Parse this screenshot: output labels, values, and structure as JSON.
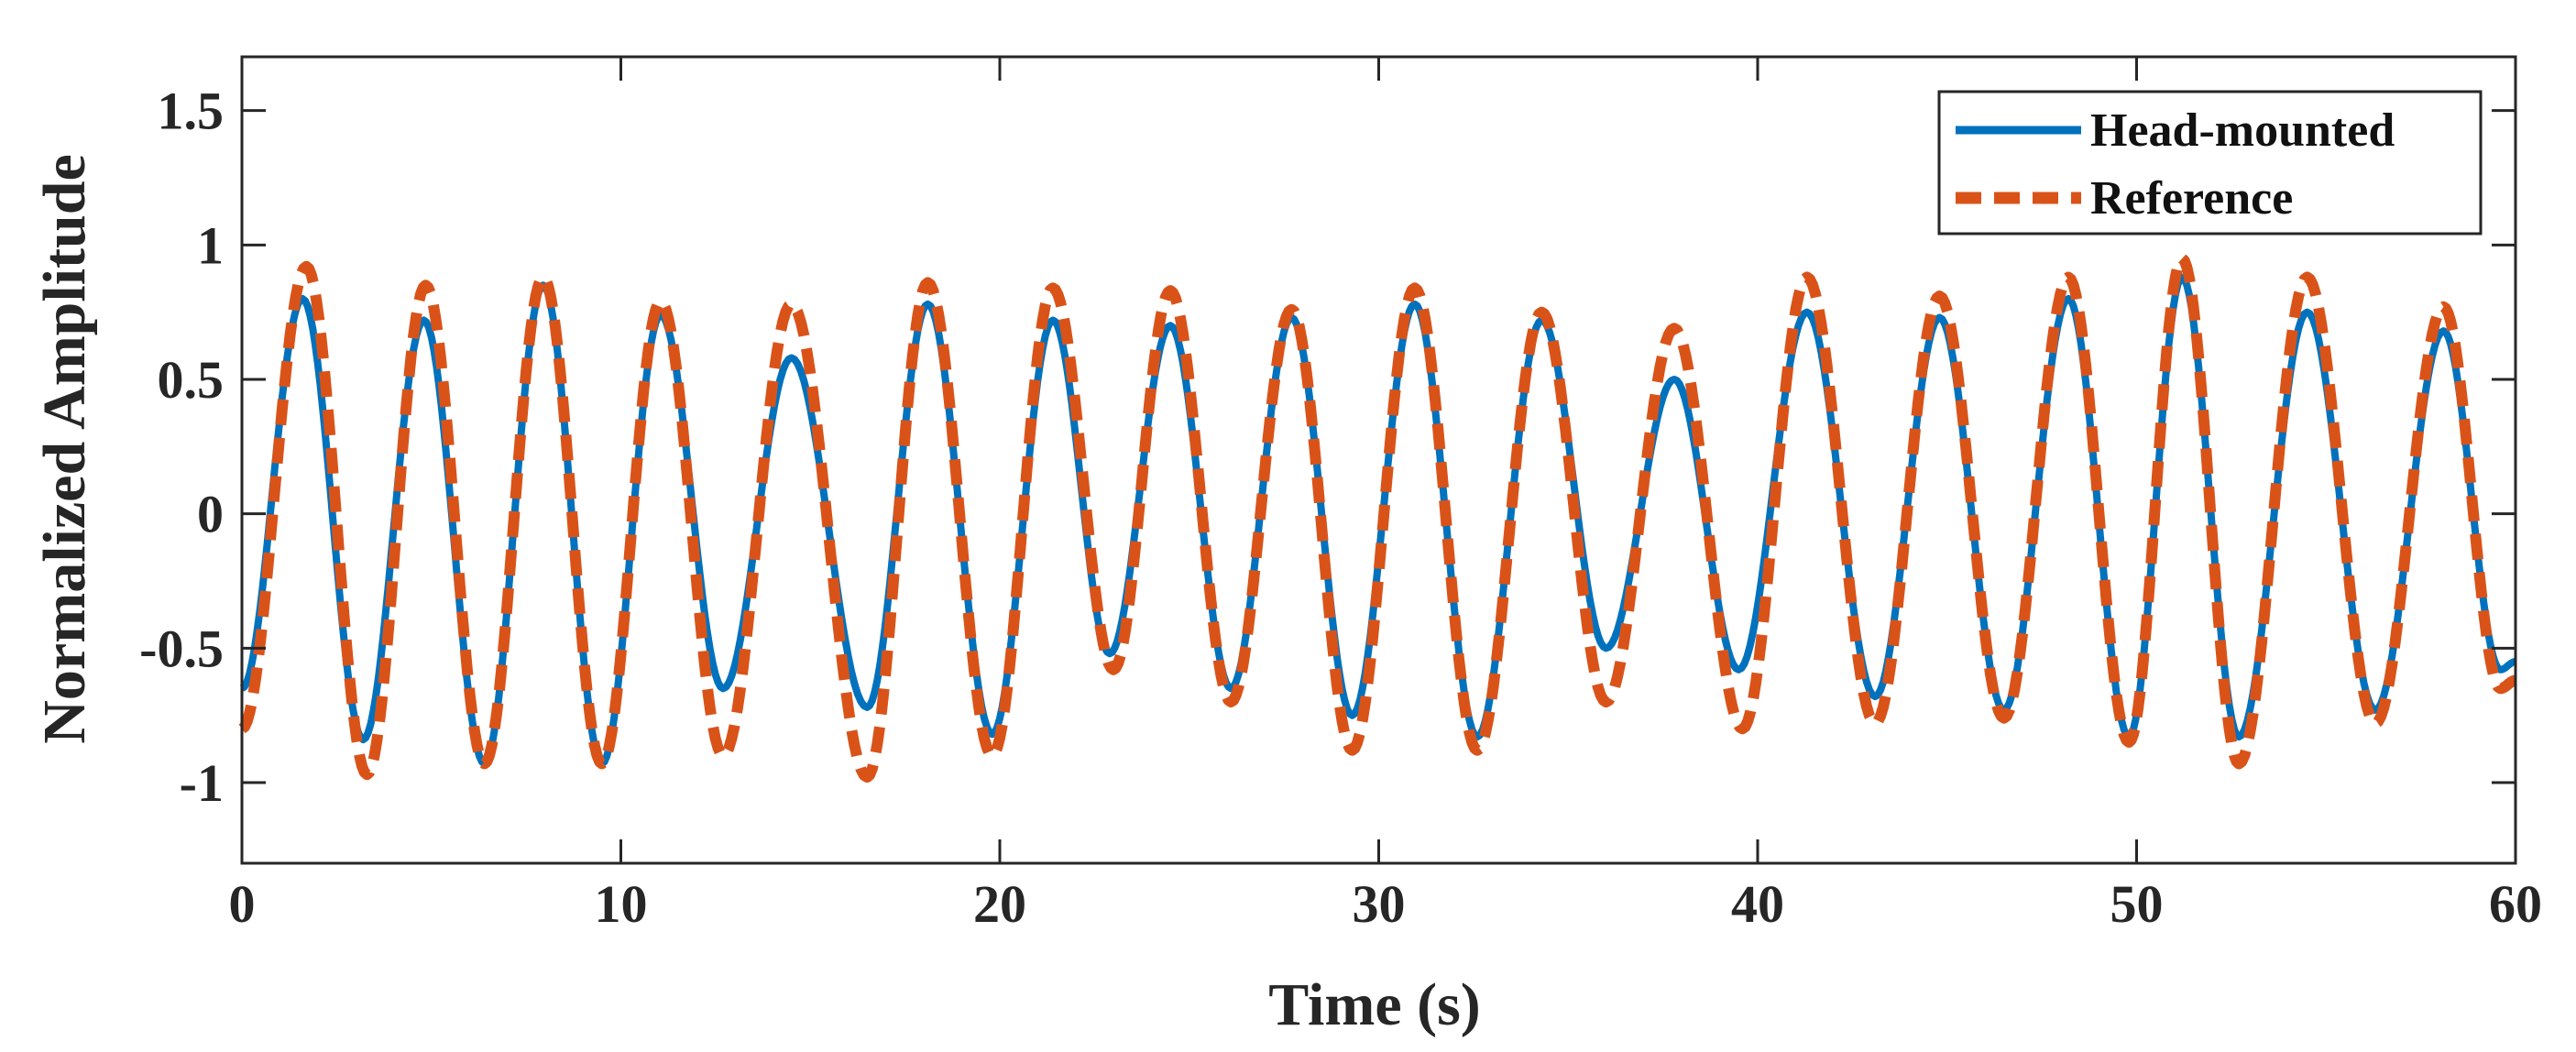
{
  "chart_data": {
    "type": "line",
    "title": "",
    "xlabel": "Time (s)",
    "ylabel": "Normalized Amplitude",
    "xlim": [
      0,
      60
    ],
    "ylim": [
      -1.3,
      1.7
    ],
    "xticks": [
      0,
      10,
      20,
      30,
      40,
      50,
      60
    ],
    "xtick_labels": [
      "0",
      "10",
      "20",
      "30",
      "40",
      "50",
      "60"
    ],
    "yticks": [
      -1,
      -0.5,
      0,
      0.5,
      1,
      1.5
    ],
    "ytick_labels": [
      "-1",
      "-0.5",
      "0",
      "0.5",
      "1",
      "1.5"
    ],
    "grid": false,
    "legend_position": "top-right",
    "series": [
      {
        "name": "Head-mounted",
        "color": "#0072BD",
        "style": "solid",
        "extrema": [
          [
            0,
            -0.65
          ],
          [
            1.6,
            0.8
          ],
          [
            3.2,
            -0.84
          ],
          [
            4.8,
            0.72
          ],
          [
            6.4,
            -0.93
          ],
          [
            7.95,
            0.85
          ],
          [
            9.5,
            -0.93
          ],
          [
            11.05,
            0.74
          ],
          [
            12.7,
            -0.65
          ],
          [
            14.5,
            0.58
          ],
          [
            16.5,
            -0.72
          ],
          [
            18.1,
            0.78
          ],
          [
            19.8,
            -0.82
          ],
          [
            21.4,
            0.72
          ],
          [
            22.9,
            -0.52
          ],
          [
            24.5,
            0.7
          ],
          [
            26.1,
            -0.65
          ],
          [
            27.7,
            0.73
          ],
          [
            29.3,
            -0.75
          ],
          [
            30.95,
            0.78
          ],
          [
            32.6,
            -0.83
          ],
          [
            34.3,
            0.72
          ],
          [
            36.0,
            -0.5
          ],
          [
            37.8,
            0.5
          ],
          [
            39.5,
            -0.58
          ],
          [
            41.3,
            0.75
          ],
          [
            43.1,
            -0.68
          ],
          [
            44.8,
            0.73
          ],
          [
            46.5,
            -0.73
          ],
          [
            48.2,
            0.8
          ],
          [
            49.8,
            -0.83
          ],
          [
            51.2,
            0.88
          ],
          [
            52.7,
            -0.83
          ],
          [
            54.5,
            0.75
          ],
          [
            56.3,
            -0.73
          ],
          [
            58.1,
            0.68
          ],
          [
            59.6,
            -0.58
          ],
          [
            60,
            -0.55
          ]
        ]
      },
      {
        "name": "Reference",
        "color": "#D95319",
        "style": "dashed",
        "extrema": [
          [
            0,
            -0.8
          ],
          [
            1.7,
            0.92
          ],
          [
            3.3,
            -0.97
          ],
          [
            4.85,
            0.85
          ],
          [
            6.4,
            -0.93
          ],
          [
            7.95,
            0.88
          ],
          [
            9.5,
            -0.93
          ],
          [
            11.05,
            0.79
          ],
          [
            12.7,
            -0.9
          ],
          [
            14.5,
            0.78
          ],
          [
            16.5,
            -0.98
          ],
          [
            18.1,
            0.86
          ],
          [
            19.8,
            -0.9
          ],
          [
            21.4,
            0.84
          ],
          [
            23.0,
            -0.58
          ],
          [
            24.5,
            0.83
          ],
          [
            26.1,
            -0.7
          ],
          [
            27.7,
            0.76
          ],
          [
            29.3,
            -0.88
          ],
          [
            30.95,
            0.84
          ],
          [
            32.6,
            -0.88
          ],
          [
            34.3,
            0.75
          ],
          [
            36.0,
            -0.7
          ],
          [
            37.8,
            0.69
          ],
          [
            39.6,
            -0.8
          ],
          [
            41.3,
            0.88
          ],
          [
            43.1,
            -0.78
          ],
          [
            44.8,
            0.81
          ],
          [
            46.5,
            -0.76
          ],
          [
            48.2,
            0.88
          ],
          [
            49.8,
            -0.85
          ],
          [
            51.2,
            0.95
          ],
          [
            52.7,
            -0.93
          ],
          [
            54.5,
            0.88
          ],
          [
            56.3,
            -0.78
          ],
          [
            58.1,
            0.77
          ],
          [
            59.6,
            -0.65
          ],
          [
            60,
            -0.62
          ]
        ]
      }
    ]
  }
}
